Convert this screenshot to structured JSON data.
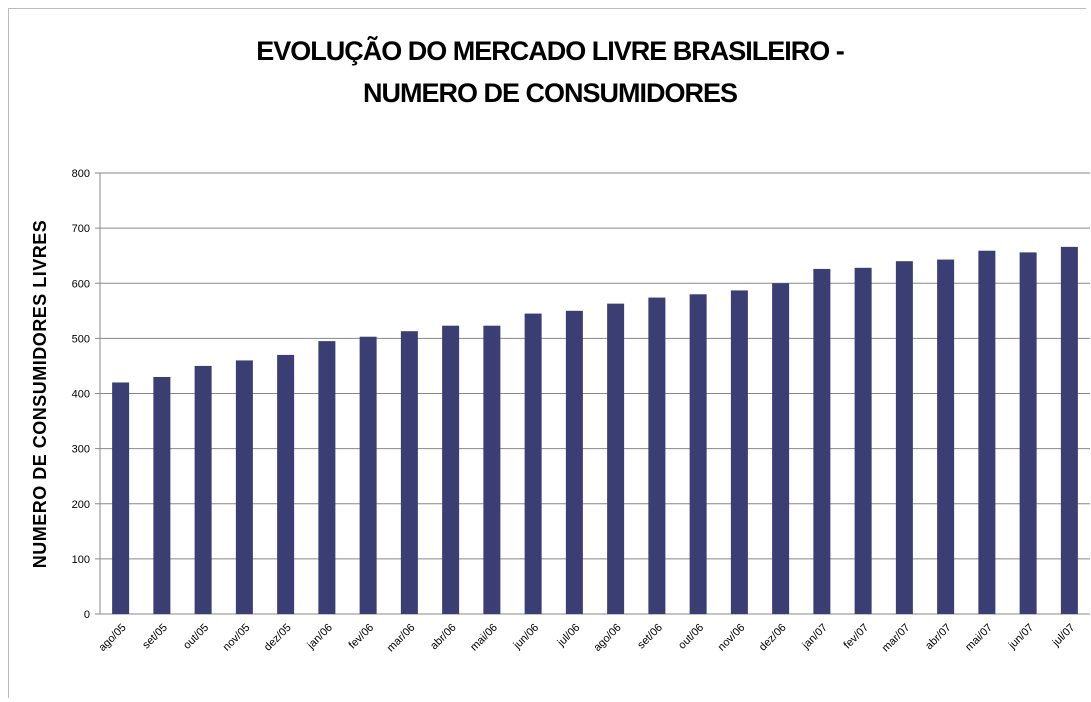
{
  "chart_data": {
    "type": "bar",
    "title": "EVOLUÇÃO DO MERCADO LIVRE BRASILEIRO - NUMERO DE CONSUMIDORES",
    "y_label": "NUMERO DE CONSUMIDORES LIVRES",
    "categories": [
      "ago/05",
      "set/05",
      "out/05",
      "nov/05",
      "dez/05",
      "jan/06",
      "fev/06",
      "mar/06",
      "abr/06",
      "mai/06",
      "jun/06",
      "jul/06",
      "ago/06",
      "set/06",
      "out/06",
      "nov/06",
      "dez/06",
      "jan/07",
      "fev/07",
      "mar/07",
      "abr/07",
      "mai/07",
      "jun/07",
      "jul/07"
    ],
    "values": [
      420,
      430,
      450,
      460,
      470,
      495,
      503,
      513,
      523,
      523,
      545,
      550,
      563,
      574,
      580,
      587,
      600,
      626,
      628,
      640,
      643,
      659,
      656,
      666
    ],
    "color": "#3b3e73",
    "ylim": [
      0,
      800
    ],
    "yticks": [
      0,
      100,
      200,
      300,
      400,
      500,
      600,
      700,
      800
    ],
    "grid": true
  }
}
